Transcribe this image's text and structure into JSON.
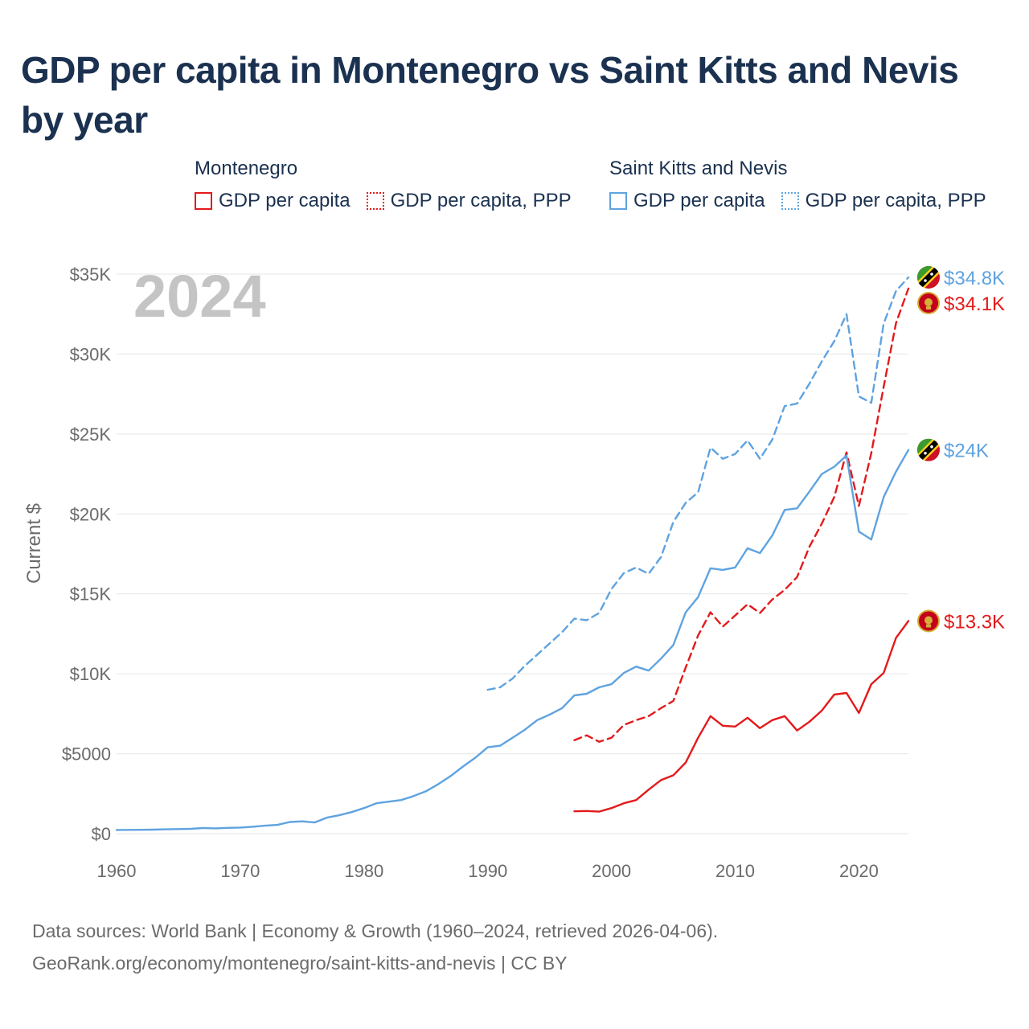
{
  "title": "GDP per capita in Montenegro vs Saint Kitts and Nevis by year",
  "legend": {
    "groups": [
      {
        "name": "Montenegro",
        "items": [
          "GDP per capita",
          "GDP per capita, PPP"
        ]
      },
      {
        "name": "Saint Kitts and Nevis",
        "items": [
          "GDP per capita",
          "GDP per capita, PPP"
        ]
      }
    ]
  },
  "source": {
    "line1": "Data sources: World Bank | Economy & Growth (1960–2024, retrieved 2026-04-06).",
    "line2": "GeoRank.org/economy/montenegro/saint-kitts-and-nevis | CC BY"
  },
  "colors": {
    "montenegro": "#e31a1c",
    "saint_kitts": "#5fa3e0",
    "grid": "#e6e6e6",
    "axis_text": "#6b6b6b"
  },
  "chart_data": {
    "type": "line",
    "title": "GDP per capita in Montenegro vs Saint Kitts and Nevis by year",
    "xlabel": "",
    "ylabel": "Current $",
    "xlim": [
      1960,
      2024
    ],
    "ylim": [
      0,
      35000
    ],
    "x_ticks": [
      1960,
      1970,
      1980,
      1990,
      2000,
      2010,
      2020
    ],
    "x_tick_labels": [
      "1960",
      "1970",
      "1980",
      "1990",
      "2000",
      "2010",
      "2020"
    ],
    "y_ticks": [
      0,
      5000,
      10000,
      15000,
      20000,
      25000,
      30000,
      35000
    ],
    "y_tick_labels": [
      "$0",
      "$5000",
      "$10K",
      "$15K",
      "$20K",
      "$25K",
      "$30K",
      "$35K"
    ],
    "grid": true,
    "year_label": "2024",
    "series": [
      {
        "name": "Saint Kitts and Nevis — GDP per capita, PPP",
        "country": "Saint Kitts and Nevis",
        "style": "dashed",
        "color": "#5fa3e0",
        "end_label": "$34.8K",
        "x": [
          1990,
          1991,
          1992,
          1993,
          1994,
          1995,
          1996,
          1997,
          1998,
          1999,
          2000,
          2001,
          2002,
          2003,
          2004,
          2005,
          2006,
          2007,
          2008,
          2009,
          2010,
          2011,
          2012,
          2013,
          2014,
          2015,
          2016,
          2017,
          2018,
          2019,
          2020,
          2021,
          2022,
          2023,
          2024
        ],
        "y": [
          9000,
          9150,
          9700,
          10500,
          11200,
          11900,
          12600,
          13450,
          13350,
          13800,
          15300,
          16300,
          16650,
          16250,
          17300,
          19500,
          20700,
          21350,
          24150,
          23450,
          23750,
          24600,
          23450,
          24650,
          26750,
          26900,
          28150,
          29550,
          30800,
          32500,
          27350,
          26950,
          31900,
          33950,
          34800
        ]
      },
      {
        "name": "Montenegro — GDP per capita, PPP",
        "country": "Montenegro",
        "style": "dashed",
        "color": "#e31a1c",
        "end_label": "$34.1K",
        "x": [
          1997,
          1998,
          1999,
          2000,
          2001,
          2002,
          2003,
          2004,
          2005,
          2006,
          2007,
          2008,
          2009,
          2010,
          2011,
          2012,
          2013,
          2014,
          2015,
          2016,
          2017,
          2018,
          2019,
          2020,
          2021,
          2022,
          2023,
          2024
        ],
        "y": [
          5850,
          6150,
          5750,
          6000,
          6800,
          7100,
          7350,
          7850,
          8300,
          10400,
          12400,
          13850,
          12950,
          13650,
          14350,
          13800,
          14650,
          15250,
          16050,
          17950,
          19400,
          21050,
          23850,
          20500,
          23800,
          27950,
          31950,
          34100
        ]
      },
      {
        "name": "Saint Kitts and Nevis — GDP per capita",
        "country": "Saint Kitts and Nevis",
        "style": "solid",
        "color": "#5fa3e0",
        "end_label": "$24K",
        "x": [
          1960,
          1961,
          1962,
          1963,
          1964,
          1965,
          1966,
          1967,
          1968,
          1969,
          1970,
          1971,
          1972,
          1973,
          1974,
          1975,
          1976,
          1977,
          1978,
          1979,
          1980,
          1981,
          1982,
          1983,
          1984,
          1985,
          1986,
          1987,
          1988,
          1989,
          1990,
          1991,
          1992,
          1993,
          1994,
          1995,
          1996,
          1997,
          1998,
          1999,
          2000,
          2001,
          2002,
          2003,
          2004,
          2005,
          2006,
          2007,
          2008,
          2009,
          2010,
          2011,
          2012,
          2013,
          2014,
          2015,
          2016,
          2017,
          2018,
          2019,
          2020,
          2021,
          2022,
          2023,
          2024
        ],
        "y": [
          230,
          235,
          240,
          250,
          270,
          285,
          300,
          350,
          330,
          360,
          380,
          430,
          500,
          550,
          730,
          770,
          700,
          1000,
          1150,
          1350,
          1600,
          1900,
          2000,
          2100,
          2350,
          2650,
          3100,
          3600,
          4200,
          4750,
          5400,
          5500,
          6000,
          6500,
          7100,
          7450,
          7850,
          8650,
          8750,
          9150,
          9350,
          10050,
          10450,
          10200,
          10950,
          11800,
          13850,
          14800,
          16600,
          16500,
          16650,
          17850,
          17550,
          18650,
          20250,
          20350,
          21400,
          22500,
          22950,
          23650,
          18900,
          18400,
          21050,
          22650,
          24000
        ]
      },
      {
        "name": "Montenegro — GDP per capita",
        "country": "Montenegro",
        "style": "solid",
        "color": "#e31a1c",
        "end_label": "$13.3K",
        "x": [
          1997,
          1998,
          1999,
          2000,
          2001,
          2002,
          2003,
          2004,
          2005,
          2006,
          2007,
          2008,
          2009,
          2010,
          2011,
          2012,
          2013,
          2014,
          2015,
          2016,
          2017,
          2018,
          2019,
          2020,
          2021,
          2022,
          2023,
          2024
        ],
        "y": [
          1400,
          1420,
          1380,
          1600,
          1900,
          2100,
          2750,
          3350,
          3650,
          4450,
          6000,
          7350,
          6750,
          6700,
          7250,
          6600,
          7100,
          7350,
          6450,
          7000,
          7700,
          8700,
          8800,
          7550,
          9350,
          10050,
          12250,
          13300
        ]
      }
    ]
  }
}
